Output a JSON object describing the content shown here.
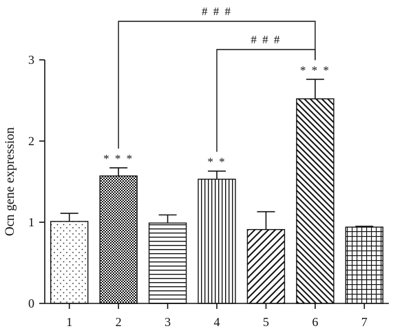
{
  "chart_data": {
    "type": "bar",
    "categories": [
      "1",
      "2",
      "3",
      "4",
      "5",
      "6",
      "7"
    ],
    "values": [
      1.01,
      1.57,
      0.99,
      1.53,
      0.91,
      2.52,
      0.94
    ],
    "errors": [
      0.1,
      0.1,
      0.1,
      0.1,
      0.22,
      0.24,
      0.01
    ],
    "patterns": [
      "dots",
      "checker",
      "hlines",
      "vlines",
      "diag-right",
      "diag-left",
      "grid"
    ],
    "bar_annotations": [
      "",
      "* * *",
      "",
      "* *",
      "",
      "* * *",
      ""
    ],
    "brackets": [
      {
        "from": "2",
        "to": "6",
        "label": "# # #"
      },
      {
        "from": "4",
        "to": "6",
        "label": "# # #"
      }
    ],
    "title": "",
    "xlabel": "",
    "ylabel": "Ocn gene expression",
    "ylim": [
      0,
      3
    ],
    "yticks": [
      "0",
      "1",
      "2",
      "3"
    ],
    "grid": false
  }
}
